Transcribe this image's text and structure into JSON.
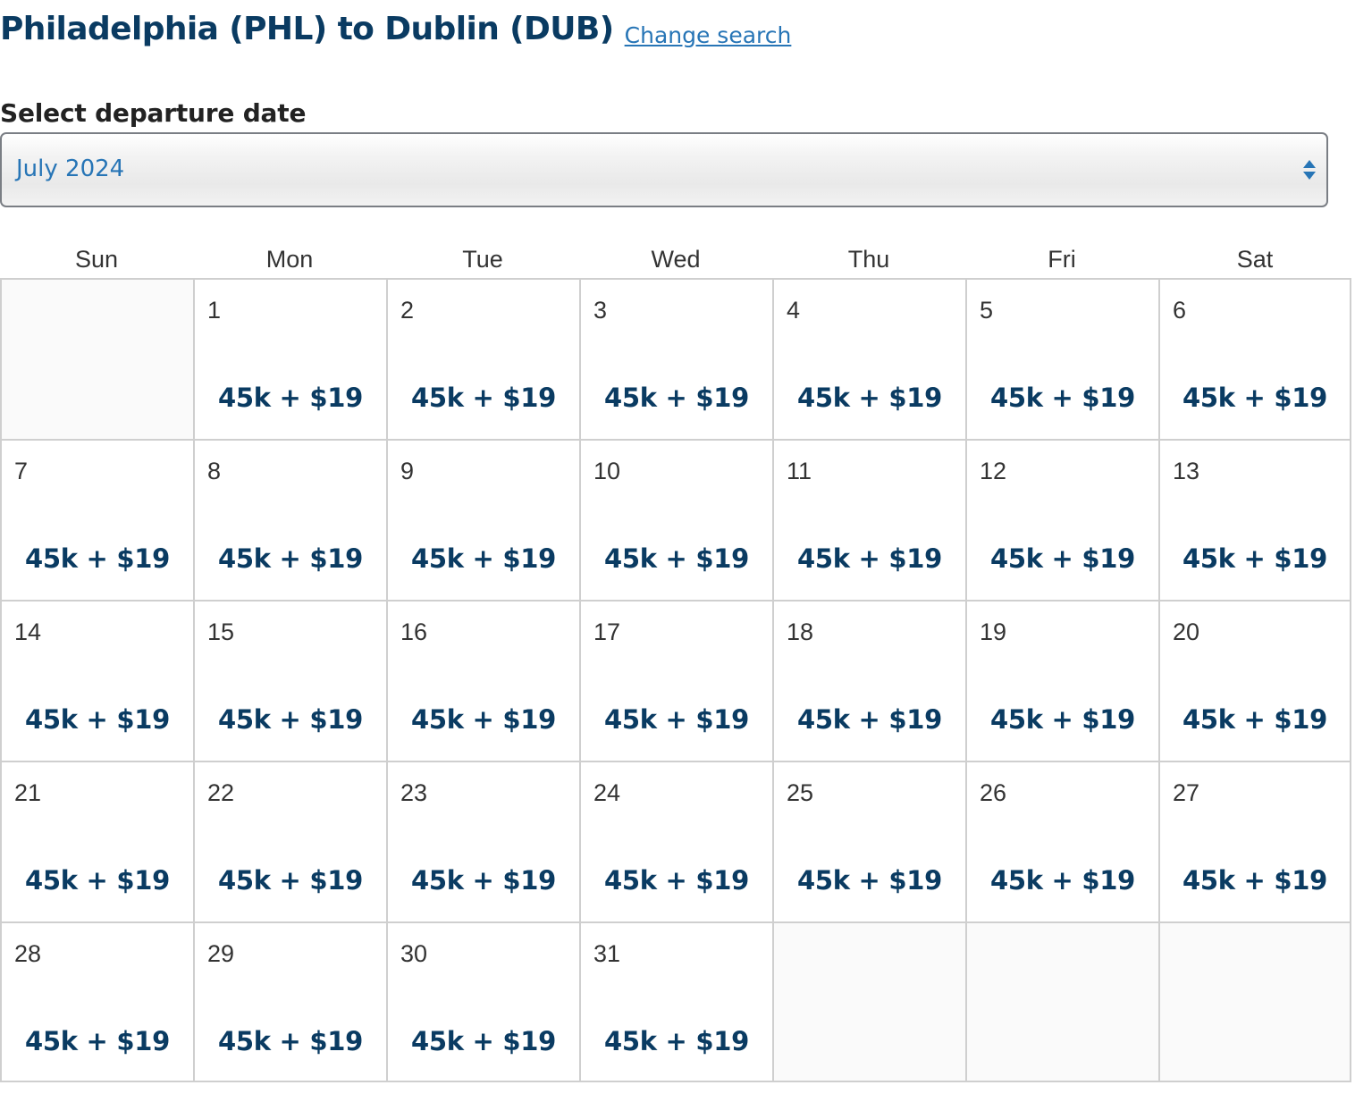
{
  "header": {
    "title": "Philadelphia (PHL) to Dublin (DUB)",
    "change_link": "Change search"
  },
  "departure": {
    "label": "Select departure date",
    "selected_month": "July 2024"
  },
  "calendar": {
    "weekdays": [
      "Sun",
      "Mon",
      "Tue",
      "Wed",
      "Thu",
      "Fri",
      "Sat"
    ],
    "days": [
      {
        "day": "1",
        "price": "45k + $19"
      },
      {
        "day": "2",
        "price": "45k + $19"
      },
      {
        "day": "3",
        "price": "45k + $19"
      },
      {
        "day": "4",
        "price": "45k + $19"
      },
      {
        "day": "5",
        "price": "45k + $19"
      },
      {
        "day": "6",
        "price": "45k + $19"
      },
      {
        "day": "7",
        "price": "45k + $19"
      },
      {
        "day": "8",
        "price": "45k + $19"
      },
      {
        "day": "9",
        "price": "45k + $19"
      },
      {
        "day": "10",
        "price": "45k + $19"
      },
      {
        "day": "11",
        "price": "45k + $19"
      },
      {
        "day": "12",
        "price": "45k + $19"
      },
      {
        "day": "13",
        "price": "45k + $19"
      },
      {
        "day": "14",
        "price": "45k + $19"
      },
      {
        "day": "15",
        "price": "45k + $19"
      },
      {
        "day": "16",
        "price": "45k + $19"
      },
      {
        "day": "17",
        "price": "45k + $19"
      },
      {
        "day": "18",
        "price": "45k + $19"
      },
      {
        "day": "19",
        "price": "45k + $19"
      },
      {
        "day": "20",
        "price": "45k + $19"
      },
      {
        "day": "21",
        "price": "45k + $19"
      },
      {
        "day": "22",
        "price": "45k + $19"
      },
      {
        "day": "23",
        "price": "45k + $19"
      },
      {
        "day": "24",
        "price": "45k + $19"
      },
      {
        "day": "25",
        "price": "45k + $19"
      },
      {
        "day": "26",
        "price": "45k + $19"
      },
      {
        "day": "27",
        "price": "45k + $19"
      },
      {
        "day": "28",
        "price": "45k + $19"
      },
      {
        "day": "29",
        "price": "45k + $19"
      },
      {
        "day": "30",
        "price": "45k + $19"
      },
      {
        "day": "31",
        "price": "45k + $19"
      }
    ]
  },
  "colors": {
    "title": "#0a3b62",
    "link": "#2775b6",
    "price": "#0a3b62",
    "grid_border": "#cfcfcf",
    "empty_cell": "#fafafa"
  }
}
